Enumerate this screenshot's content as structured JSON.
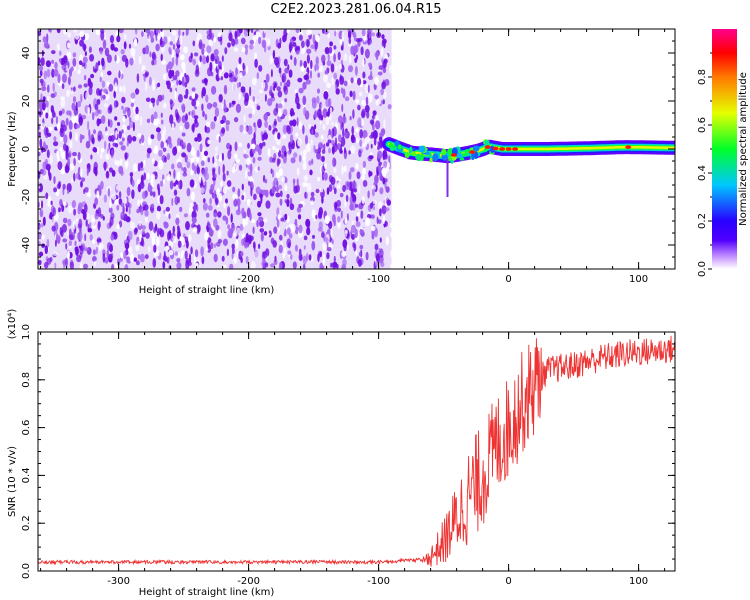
{
  "title": "C2E2.2023.281.06.04.R15",
  "chart_data": [
    {
      "type": "heatmap",
      "xlabel": "Height of straight line (km)",
      "ylabel": "Frequency (Hz)",
      "xlim": [
        -362,
        128
      ],
      "ylim": [
        -50,
        50
      ],
      "xticks": [
        -300,
        -200,
        -100,
        0,
        100
      ],
      "yticks": [
        -40,
        -20,
        0,
        20,
        40
      ],
      "noise_region": {
        "x_range": [
          -362,
          -90
        ],
        "description": "broadband noise (purple speckle)"
      },
      "signal_trace": {
        "x": [
          -92,
          -85,
          -75,
          -65,
          -55,
          -47,
          -40,
          -30,
          -22,
          -15,
          -5,
          0,
          10,
          30,
          60,
          90,
          128
        ],
        "frequency": [
          2,
          0.5,
          -1.5,
          -2,
          -2.5,
          -3,
          -2.5,
          -1.5,
          -0.5,
          1,
          0,
          0,
          0,
          0,
          0.3,
          0.8,
          0.5
        ]
      },
      "grid": false
    },
    {
      "type": "line",
      "xlabel": "Height of straight line (km)",
      "ylabel": "SNR (10 * v/v)",
      "yscale_label": "(x10⁴)",
      "xlim": [
        -362,
        128
      ],
      "ylim": [
        0,
        1.0
      ],
      "xticks": [
        -300,
        -200,
        -100,
        0,
        100
      ],
      "yticks": [
        0.0,
        0.2,
        0.4,
        0.6,
        0.8,
        1.0
      ],
      "series": [
        {
          "color": "#ee3333",
          "x": [
            -362,
            -300,
            -200,
            -100,
            -68,
            -60,
            -50,
            -40,
            -30,
            -20,
            -10,
            0,
            10,
            20,
            30,
            50,
            70,
            90,
            110,
            128
          ],
          "y": [
            0.03,
            0.03,
            0.03,
            0.03,
            0.04,
            0.06,
            0.12,
            0.22,
            0.32,
            0.4,
            0.52,
            0.6,
            0.7,
            0.78,
            0.84,
            0.86,
            0.89,
            0.91,
            0.92,
            0.93
          ]
        }
      ],
      "grid": false
    }
  ],
  "colorbar": {
    "label": "Normalized spectral amplitude",
    "ticks": [
      0.0,
      0.2,
      0.4,
      0.6,
      0.8
    ],
    "range": [
      0,
      1
    ]
  },
  "colors": {
    "signal": "#ee3333",
    "noise": "#7a1ee0"
  }
}
